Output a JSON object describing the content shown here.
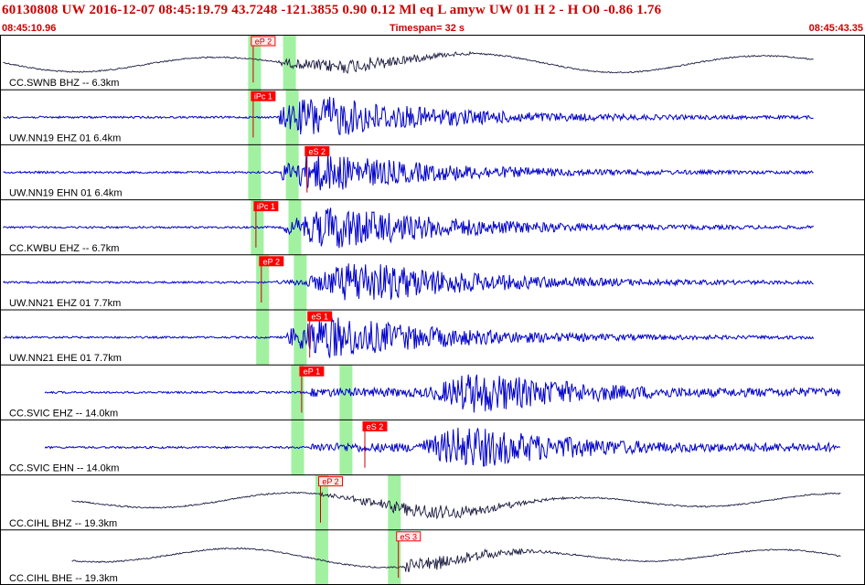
{
  "header": {
    "title": "60130808 UW 2016-12-07 08:45:19.79   43.7248 -121.3855   0.90  0.12 Ml  eq  L amyw     UW 01  H   2  -  H O0   -0.86  1.76",
    "start_time": "08:45:10.96",
    "timespan": "Timespan=  32 s",
    "end_time": "08:45:43.35"
  },
  "colors": {
    "header_text": "#cc0000",
    "pick_fill": "#ff0000",
    "pick_outline": "#ff0000",
    "trace_short_period": "#0000cc",
    "trace_broadband": "#1a1a40",
    "phase_window": "#90ee90",
    "pick_line": "#cc0000"
  },
  "chart_data": {
    "type": "line",
    "title": "60130808 UW 2016-12-07 08:45:19.79   43.7248 -121.3855   0.90  0.12 Ml  eq  L amyw     UW 01  H   2  -  H O0   -0.86  1.76",
    "xlabel": "",
    "ylabel": "",
    "x_range": [
      "08:45:10.96",
      "08:45:43.35"
    ],
    "timespan_s": 32,
    "grid": false,
    "legend": "none",
    "channels": [
      {
        "label": "CC.SWNB BHZ -- 6.3km",
        "kind": "broadband",
        "pick": {
          "label": "eP 2",
          "t": 9.35
        },
        "windows": [
          9.4,
          10.7
        ],
        "onset_t": 10.3,
        "peak_t": 13.1,
        "env": 1.0,
        "fill": false
      },
      {
        "label": "UW.NN19 EHZ 01 6.4km",
        "kind": "short",
        "pick": {
          "label": "iPc 1",
          "t": 9.35
        },
        "windows": [
          9.4,
          10.8
        ],
        "onset_t": 10.3,
        "peak_t": 11.9,
        "env": 1.0,
        "fill": true
      },
      {
        "label": "UW.NN19 EHN 01 6.4km",
        "kind": "short",
        "pick": {
          "label": "eS 2",
          "t": 11.35
        },
        "windows": [
          9.4,
          10.8
        ],
        "onset_t": 10.4,
        "peak_t": 12.0,
        "env": 0.9,
        "fill": true
      },
      {
        "label": "CC.KWBU EHZ -- 6.7km",
        "kind": "short",
        "pick": {
          "label": "iPc 1",
          "t": 9.45
        },
        "windows": [
          9.5,
          10.9
        ],
        "onset_t": 10.5,
        "peak_t": 12.5,
        "env": 1.0,
        "fill": true
      },
      {
        "label": "UW.NN21 EHZ 01 7.7km",
        "kind": "short",
        "pick": {
          "label": "eP 2",
          "t": 9.65
        },
        "windows": [
          9.7,
          11.1
        ],
        "onset_t": 10.2,
        "peak_t": 13.4,
        "env": 1.0,
        "fill": true
      },
      {
        "label": "UW.NN21 EHE 01 7.7km",
        "kind": "short",
        "pick": {
          "label": "eS 1",
          "t": 11.45
        },
        "windows": [
          9.7,
          11.1
        ],
        "onset_t": 10.6,
        "peak_t": 12.3,
        "env": 1.0,
        "fill": true
      },
      {
        "label": "CC.SVIC EHZ -- 14.0km",
        "kind": "short",
        "pick": {
          "label": "eP 1",
          "t": 11.15
        },
        "windows": [
          11.0,
          12.8
        ],
        "onset_t": 11.5,
        "peak_t": 17.8,
        "env": 0.95,
        "fill": true
      },
      {
        "label": "CC.SVIC EHN -- 14.0km",
        "kind": "short",
        "pick": {
          "label": "eS 2",
          "t": 13.5
        },
        "windows": [
          11.0,
          12.8
        ],
        "onset_t": 11.5,
        "peak_t": 17.4,
        "env": 1.0,
        "fill": true
      },
      {
        "label": "CC.CIHL BHZ -- 19.3km",
        "kind": "broadband",
        "pick": {
          "label": "eP 2",
          "t": 11.85
        },
        "windows": [
          11.9,
          14.6
        ],
        "onset_t": 11.8,
        "peak_t": 16.0,
        "env": 1.0,
        "fill": false
      },
      {
        "label": "CC.CIHL BHE -- 19.3km",
        "kind": "broadband",
        "pick": {
          "label": "eS 3",
          "t": 14.75
        },
        "windows": [
          11.9,
          14.6
        ],
        "onset_t": 15.0,
        "peak_t": 16.0,
        "env": 1.0,
        "fill": false
      }
    ]
  }
}
